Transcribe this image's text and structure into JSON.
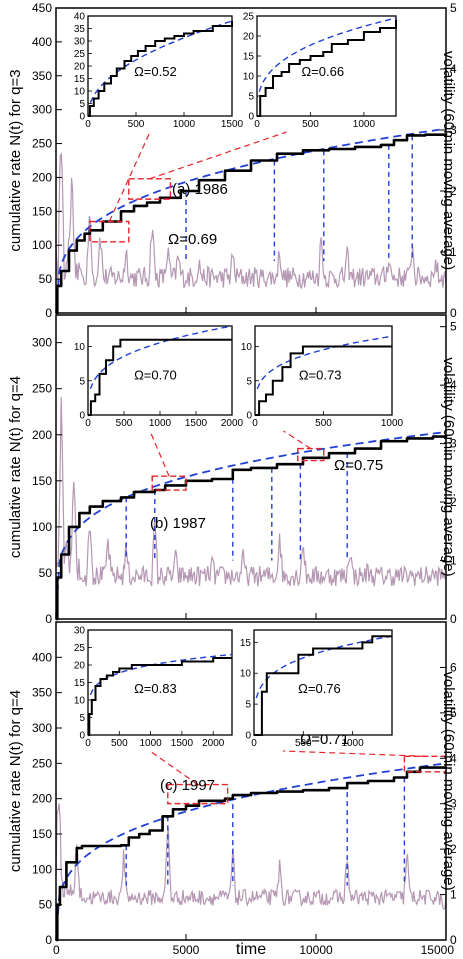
{
  "chart_data": [
    {
      "panel": "a",
      "type": "line",
      "label": "(a) 1986",
      "omega_label": "Ω=0.69",
      "ylabel": "cumulative rate N(t) for q=3",
      "y2label": "volatility (60min moving average)",
      "xlim": [
        0,
        15000
      ],
      "ylim": [
        0,
        450
      ],
      "y2lim": [
        0,
        5
      ],
      "yticks": [
        0,
        50,
        100,
        150,
        200,
        250,
        300,
        350,
        400,
        450
      ],
      "y2ticks": [
        0,
        1,
        2,
        3,
        4,
        5
      ],
      "series": [
        {
          "role": "cumulative",
          "color": "#000000",
          "x": [
            0,
            50,
            200,
            500,
            800,
            1100,
            1300,
            1800,
            2500,
            3000,
            3500,
            4000,
            4800,
            5500,
            6500,
            7500,
            8500,
            9500,
            10500,
            11500,
            12500,
            13000,
            13500,
            14200,
            15000
          ],
          "y": [
            0,
            40,
            62,
            92,
            107,
            117,
            122,
            135,
            150,
            158,
            163,
            170,
            180,
            196,
            210,
            225,
            235,
            240,
            242,
            245,
            248,
            255,
            262,
            263,
            265
          ]
        },
        {
          "role": "fit",
          "color": "#1f3fd6",
          "omega": 0.69,
          "x": [
            0,
            15000
          ],
          "y": [
            0,
            272
          ]
        },
        {
          "role": "volatility",
          "color": "#b597b3",
          "base": 0.55,
          "x": [
            200,
            600,
            1300,
            1700,
            2700,
            3700,
            4300,
            4700,
            5500,
            6800,
            8600,
            10200,
            11200,
            12800,
            13700,
            14600
          ],
          "y": [
            2.5,
            1.9,
            1.7,
            1.3,
            1.0,
            1.5,
            1.0,
            0.9,
            0.8,
            0.9,
            1.0,
            1.2,
            0.9,
            0.9,
            1.1,
            0.8
          ]
        }
      ],
      "event_lines": {
        "color": "#1f3fd6",
        "x": [
          5000,
          8400,
          10300,
          12800,
          13700
        ]
      },
      "zoom_boxes": [
        {
          "x": [
            1300,
            2800
          ],
          "y": [
            105,
            135
          ]
        },
        {
          "x": [
            2800,
            4400
          ],
          "y": [
            168,
            198
          ]
        }
      ],
      "insets": [
        {
          "omega_label": "Ω=0.52",
          "xlim": [
            0,
            1500
          ],
          "ylim": [
            0,
            40
          ],
          "xticks": [
            0,
            500,
            1000,
            1500
          ],
          "yticks": [
            0,
            5,
            10,
            15,
            20,
            25,
            30,
            35,
            40
          ],
          "step": {
            "x": [
              0,
              20,
              60,
              110,
              170,
              240,
              300,
              380,
              450,
              520,
              600,
              700,
              800,
              900,
              1000,
              1100,
              1300,
              1500
            ],
            "y": [
              0,
              4,
              7,
              10,
              13,
              16,
              19,
              22,
              24,
              26,
              28,
              30,
              31,
              32,
              33,
              34,
              36,
              38
            ]
          },
          "fit_end": [
            1500,
            38
          ]
        },
        {
          "omega_label": "Ω=0.66",
          "xlim": [
            0,
            1300
          ],
          "ylim": [
            0,
            25
          ],
          "xticks": [
            0,
            500,
            1000
          ],
          "yticks": [
            0,
            5,
            10,
            15,
            20,
            25
          ],
          "step": {
            "x": [
              0,
              30,
              80,
              150,
              230,
              300,
              400,
              500,
              620,
              700,
              850,
              1000,
              1150,
              1300
            ],
            "y": [
              0,
              5,
              7,
              10,
              11,
              13,
              14,
              15,
              16,
              18,
              19,
              21,
              22,
              24
            ]
          },
          "fit_end": [
            1300,
            24.5
          ]
        }
      ]
    },
    {
      "panel": "b",
      "type": "line",
      "label": "(b) 1987",
      "omega_label": "Ω=0.75",
      "ylabel": "cumulative rate N(t) for q=4",
      "y2label": "volatility (60min moving average)",
      "xlim": [
        0,
        15000
      ],
      "ylim": [
        0,
        330
      ],
      "y2lim": [
        0,
        5.2
      ],
      "yticks": [
        0,
        50,
        100,
        150,
        200,
        250,
        300
      ],
      "y2ticks": [
        0,
        1,
        2,
        3,
        4,
        5
      ],
      "series": [
        {
          "role": "cumulative",
          "color": "#000000",
          "x": [
            0,
            50,
            200,
            500,
            900,
            1300,
            1800,
            2500,
            3000,
            3800,
            4200,
            5000,
            6000,
            6800,
            7500,
            8500,
            9500,
            10500,
            11500,
            12500,
            13500,
            14500,
            15000
          ],
          "y": [
            0,
            45,
            70,
            100,
            115,
            122,
            128,
            132,
            138,
            140,
            145,
            150,
            152,
            162,
            164,
            168,
            175,
            180,
            185,
            193,
            196,
            198,
            200
          ]
        },
        {
          "role": "fit",
          "color": "#1f3fd6",
          "omega": 0.75,
          "x": [
            0,
            15000
          ],
          "y": [
            0,
            203
          ]
        },
        {
          "role": "volatility",
          "color": "#b597b3",
          "base": 0.7,
          "x": [
            200,
            700,
            1300,
            2000,
            2700,
            3800,
            4600,
            6000,
            7200,
            8600,
            9500,
            11300,
            12000,
            14200
          ],
          "y": [
            3.2,
            2.3,
            1.8,
            1.3,
            1.2,
            1.6,
            1.0,
            0.9,
            1.0,
            1.4,
            1.3,
            1.2,
            0.8,
            0.7
          ]
        }
      ],
      "event_lines": {
        "color": "#1f3fd6",
        "x": [
          2700,
          3800,
          6800,
          8300,
          9400,
          11200
        ]
      },
      "zoom_boxes": [
        {
          "x": [
            3700,
            5000
          ],
          "y": [
            140,
            155
          ]
        },
        {
          "x": [
            9300,
            10300
          ],
          "y": [
            172,
            185
          ]
        }
      ],
      "insets": [
        {
          "omega_label": "Ω=0.70",
          "xlim": [
            0,
            2000
          ],
          "ylim": [
            0,
            13
          ],
          "xticks": [
            0,
            500,
            1000,
            1500,
            2000
          ],
          "yticks": [
            0,
            5,
            10
          ],
          "step": {
            "x": [
              0,
              40,
              100,
              160,
              250,
              350,
              450,
              2000
            ],
            "y": [
              0,
              2,
              3,
              6,
              8,
              10,
              11,
              11
            ]
          },
          "fit_end": [
            2000,
            13
          ]
        },
        {
          "omega_label": "Ω=0.73",
          "xlim": [
            0,
            1000
          ],
          "ylim": [
            0,
            13
          ],
          "xticks": [
            0,
            500,
            1000
          ],
          "yticks": [
            0,
            5,
            10
          ],
          "step": {
            "x": [
              0,
              30,
              80,
              130,
              200,
              260,
              350,
              1000
            ],
            "y": [
              0,
              2,
              3,
              5,
              7,
              9,
              10,
              10
            ]
          },
          "fit_end": [
            1000,
            11.5
          ]
        }
      ]
    },
    {
      "panel": "c",
      "type": "line",
      "label": "(c) 1997",
      "omega_label": "Ω=0.71",
      "ylabel": "cumulative rate N(t) for q=4",
      "y2label": "volatility (60min moving average)",
      "xlabel": "time",
      "xlim": [
        0,
        15000
      ],
      "ylim": [
        0,
        450
      ],
      "y2lim": [
        0,
        7
      ],
      "xticks": [
        0,
        5000,
        10000,
        15000
      ],
      "yticks": [
        0,
        50,
        100,
        150,
        200,
        250,
        300,
        350,
        400
      ],
      "y2ticks": [
        0,
        1,
        2,
        3,
        4,
        5,
        6
      ],
      "series": [
        {
          "role": "cumulative",
          "color": "#000000",
          "x": [
            0,
            50,
            150,
            400,
            800,
            1000,
            1500,
            2000,
            2500,
            2800,
            3200,
            3600,
            4100,
            4500,
            5000,
            5500,
            6500,
            6800,
            7500,
            8500,
            9500,
            10500,
            11200,
            12000,
            13000,
            13500,
            14000,
            15000
          ],
          "y": [
            0,
            50,
            75,
            110,
            130,
            133,
            133,
            133,
            134,
            145,
            150,
            155,
            175,
            185,
            190,
            197,
            200,
            205,
            208,
            210,
            212,
            215,
            222,
            225,
            230,
            238,
            244,
            245
          ]
        },
        {
          "role": "fit",
          "color": "#1f3fd6",
          "omega": 0.71,
          "x": [
            0,
            15000
          ],
          "y": [
            0,
            250
          ]
        },
        {
          "role": "volatility",
          "color": "#b597b3",
          "base": 0.9,
          "x": [
            100,
            800,
            2600,
            4300,
            6800,
            8600,
            11200,
            13500,
            14900
          ],
          "y": [
            3.0,
            1.8,
            1.8,
            2.6,
            1.9,
            1.6,
            1.8,
            1.9,
            0.6
          ]
        }
      ],
      "event_lines": {
        "color": "#1f3fd6",
        "x": [
          2700,
          4300,
          6800,
          11200,
          13400
        ]
      },
      "zoom_boxes": [
        {
          "x": [
            4300,
            6600
          ],
          "y": [
            193,
            220
          ]
        },
        {
          "x": [
            13400,
            15000
          ],
          "y": [
            238,
            260
          ]
        }
      ],
      "insets": [
        {
          "omega_label": "Ω=0.83",
          "xlim": [
            0,
            2300
          ],
          "ylim": [
            0,
            30
          ],
          "xticks": [
            0,
            500,
            1000,
            1500,
            2000
          ],
          "yticks": [
            0,
            5,
            10,
            15,
            20,
            25,
            30
          ],
          "step": {
            "x": [
              0,
              20,
              60,
              120,
              200,
              300,
              400,
              500,
              700,
              900,
              1200,
              1500,
              1800,
              2000,
              2300
            ],
            "y": [
              0,
              6,
              10,
              14,
              16,
              17,
              18,
              19,
              20,
              20,
              20,
              21,
              21,
              22,
              22
            ]
          },
          "fit_end": [
            2300,
            23
          ]
        },
        {
          "omega_label": "Ω=0.76",
          "xlim": [
            0,
            1400
          ],
          "ylim": [
            0,
            17
          ],
          "xticks": [
            0,
            500,
            1000
          ],
          "yticks": [
            0,
            5,
            10,
            15
          ],
          "step": {
            "x": [
              0,
              80,
              130,
              400,
              450,
              600,
              900,
              1100,
              1200,
              1400
            ],
            "y": [
              0,
              7,
              10,
              10,
              13,
              14,
              14,
              15,
              16,
              16
            ]
          },
          "fit_end": [
            1400,
            16
          ]
        }
      ]
    }
  ]
}
